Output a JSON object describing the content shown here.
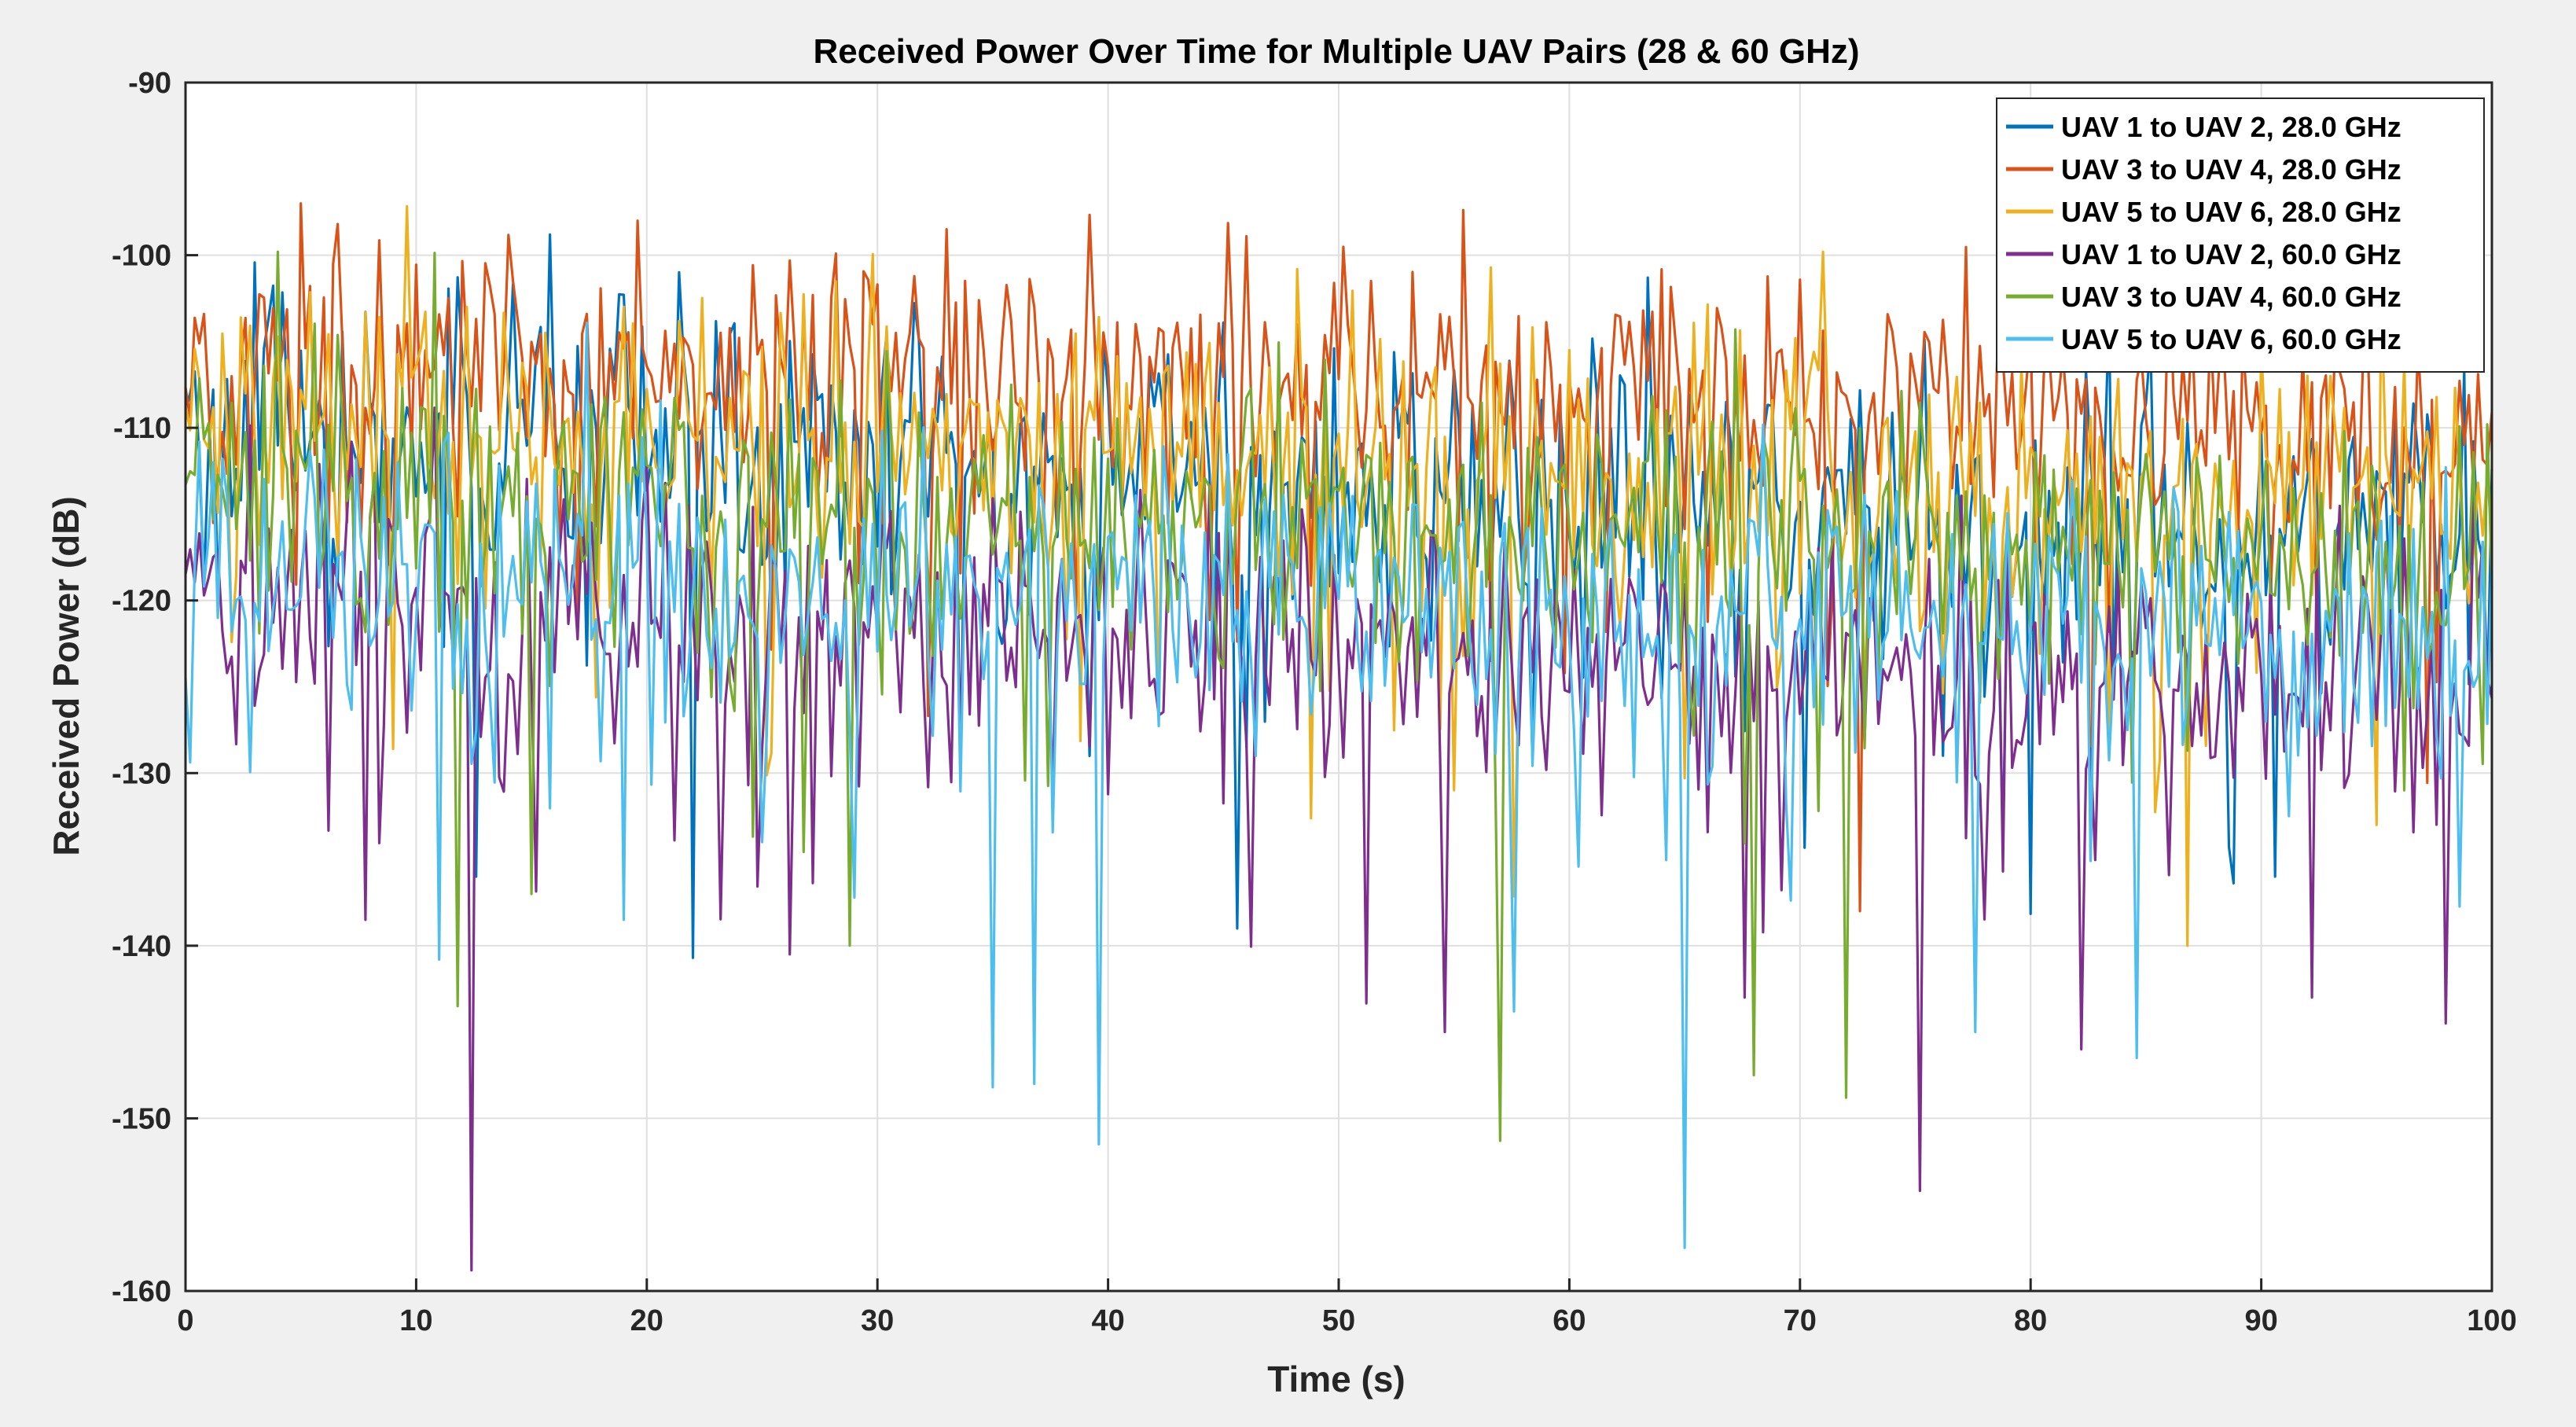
{
  "chart_data": {
    "type": "line",
    "title": "Received Power Over Time for Multiple UAV Pairs (28 & 60 GHz)",
    "xlabel": "Time (s)",
    "ylabel": "Received Power (dB)",
    "xlim": [
      0,
      100
    ],
    "ylim": [
      -160,
      -90
    ],
    "xticks": [
      0,
      10,
      20,
      30,
      40,
      50,
      60,
      70,
      80,
      90,
      100
    ],
    "yticks": [
      -160,
      -150,
      -140,
      -130,
      -120,
      -110,
      -100,
      -90
    ],
    "grid": true,
    "legend_position": "top-right",
    "x_sampling": {
      "start": 0,
      "end": 100,
      "step": 0.2
    },
    "series": [
      {
        "name": "UAV 1 to UAV 2, 28.0 GHz",
        "color": "#0072BD",
        "mean_start": -110,
        "mean_end": -116,
        "spread": 4.2,
        "fades": [
          [
            22.0,
            -140.7
          ],
          [
            12.6,
            -136
          ],
          [
            45.5,
            -139
          ],
          [
            90.5,
            -136
          ]
        ]
      },
      {
        "name": "UAV 3 to UAV 4, 28.0 GHz",
        "color": "#D95319",
        "mean_start": -105,
        "mean_end": -110,
        "spread": 3.8,
        "fades": [
          [
            5.0,
            -97
          ],
          [
            19.5,
            -98
          ],
          [
            33.0,
            -98.5
          ],
          [
            82.5,
            -135
          ],
          [
            72.5,
            -138
          ]
        ]
      },
      {
        "name": "UAV 5 to UAV 6, 28.0 GHz",
        "color": "#EDB120",
        "mean_start": -109,
        "mean_end": -114,
        "spread": 4.0,
        "fades": [
          [
            86.8,
            -140
          ],
          [
            9.0,
            -128.6
          ],
          [
            55.0,
            -131
          ],
          [
            95.0,
            -133
          ]
        ]
      },
      {
        "name": "UAV 1 to UAV 2, 60.0 GHz",
        "color": "#7E2F8E",
        "mean_start": -120,
        "mean_end": -125,
        "spread": 4.0,
        "fades": [
          [
            12.3,
            -158.8
          ],
          [
            75.3,
            -154.2
          ],
          [
            54.5,
            -145
          ],
          [
            92.3,
            -143
          ],
          [
            82.2,
            -146
          ],
          [
            98.0,
            -144.5
          ],
          [
            7.8,
            -138.5
          ],
          [
            26.2,
            -140.5
          ],
          [
            67.5,
            -143
          ]
        ]
      },
      {
        "name": "UAV 3 to UAV 4, 60.0 GHz",
        "color": "#77AC30",
        "mean_start": -113,
        "mean_end": -118,
        "spread": 4.0,
        "fades": [
          [
            57.0,
            -151.3
          ],
          [
            72.0,
            -148.8
          ],
          [
            68.0,
            -147.5
          ],
          [
            11.8,
            -143.5
          ],
          [
            4.0,
            -99.8
          ],
          [
            99.8,
            -109.8
          ],
          [
            15.0,
            -137
          ]
        ]
      },
      {
        "name": "UAV 5 to UAV 6, 60.0 GHz",
        "color": "#4DBEEE",
        "mean_start": -118,
        "mean_end": -122,
        "spread": 3.8,
        "fades": [
          [
            65.0,
            -157.5
          ],
          [
            39.5,
            -151.5
          ],
          [
            35.0,
            -148.2
          ],
          [
            36.8,
            -148
          ],
          [
            11.1,
            -140.8
          ],
          [
            84.5,
            -146.5
          ],
          [
            77.5,
            -145
          ],
          [
            19.0,
            -138.5
          ],
          [
            57.5,
            -143.8
          ],
          [
            25.0,
            -134
          ]
        ]
      }
    ]
  }
}
